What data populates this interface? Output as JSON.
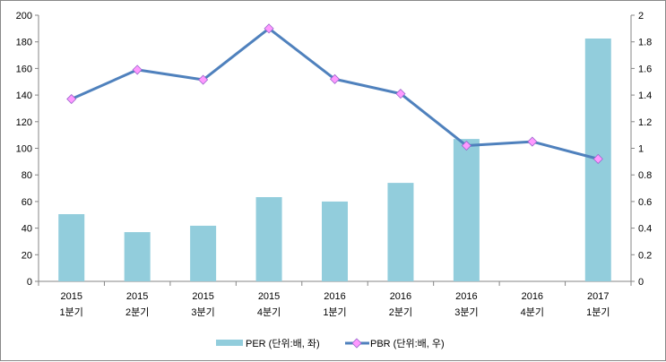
{
  "chart_data": {
    "type": "bar+line",
    "categories": [
      [
        "2015",
        "1분기"
      ],
      [
        "2015",
        "2분기"
      ],
      [
        "2015",
        "3분기"
      ],
      [
        "2015",
        "4분기"
      ],
      [
        "2016",
        "1분기"
      ],
      [
        "2016",
        "2분기"
      ],
      [
        "2016",
        "3분기"
      ],
      [
        "2016",
        "4분기"
      ],
      [
        "2017",
        "1분기"
      ]
    ],
    "series": [
      {
        "name": "PER (단위:배, 좌)",
        "type": "bar",
        "axis": "left",
        "color": "#92CDDC",
        "values": [
          50.5,
          37,
          41.8,
          63.3,
          60,
          74,
          107,
          0,
          182.5
        ]
      },
      {
        "name": "PBR (단위:배, 우)",
        "type": "line",
        "axis": "right",
        "color": "#4F81BD",
        "marker_color": "#FF99FF",
        "values": [
          1.37,
          1.59,
          1.515,
          1.9,
          1.52,
          1.41,
          1.02,
          1.05,
          0.92
        ]
      }
    ],
    "left_axis": {
      "range": [
        0,
        200
      ],
      "ticks": [
        "0",
        "20",
        "40",
        "60",
        "80",
        "100",
        "120",
        "140",
        "160",
        "180",
        "200"
      ]
    },
    "right_axis": {
      "range": [
        0,
        2
      ],
      "ticks": [
        "0",
        "0.2",
        "0.4",
        "0.6",
        "0.8",
        "1",
        "1.2",
        "1.4",
        "1.6",
        "1.8",
        "2"
      ]
    },
    "legend": "bottom",
    "grid": false
  }
}
